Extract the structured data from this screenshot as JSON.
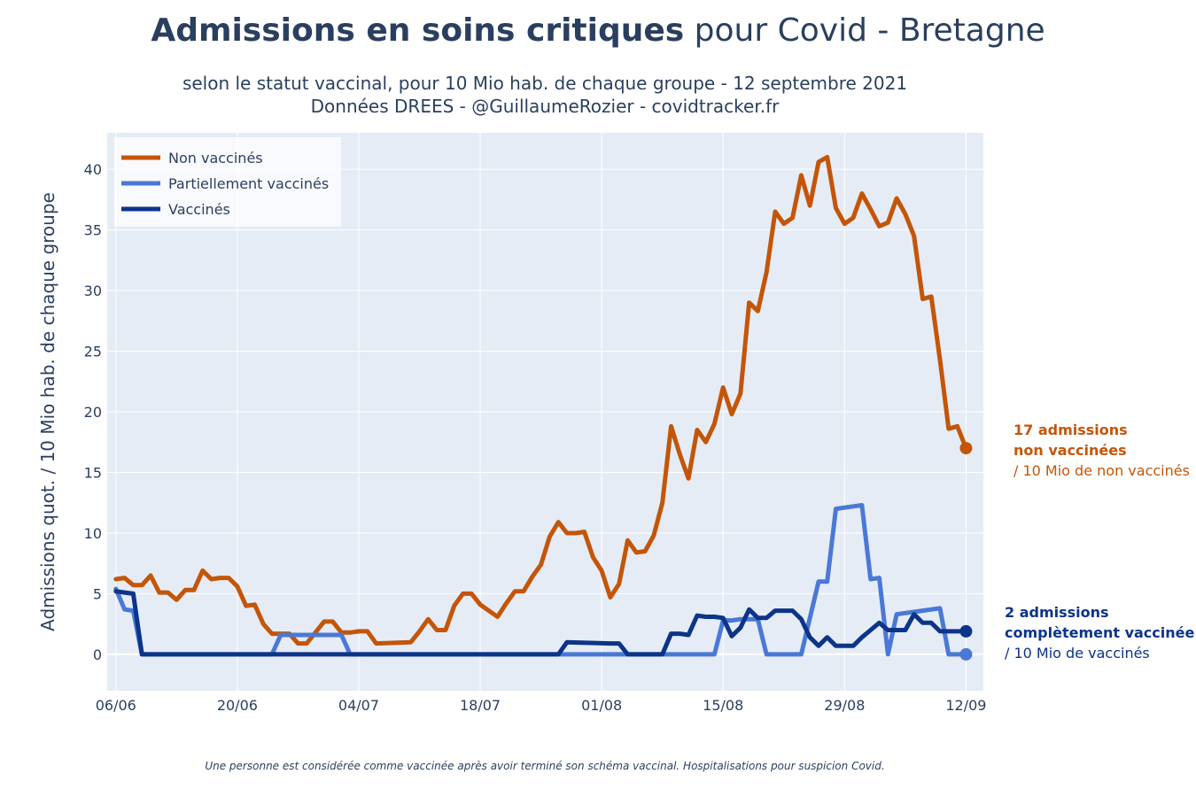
{
  "title": {
    "bold": "Admissions en soins critiques",
    "rest": " pour Covid - Bretagne"
  },
  "subtitle_line1": "selon le statut vaccinal, pour 10 Mio hab. de chaque groupe - 12 septembre 2021",
  "subtitle_line2": "Données DREES - @GuillaumeRozier - covidtracker.fr",
  "footnote": "Une personne est considérée comme vaccinée après avoir terminé son schéma vaccinal. Hospitalisations pour suspicion Covid.",
  "annotations": {
    "non_vaccines": {
      "line1": "17 admissions",
      "line2": "non vaccinées",
      "line3": "/ 10 Mio de non vaccinés"
    },
    "vaccines": {
      "line1": "2 admissions",
      "line2": "complètement vaccinée",
      "line3": "/ 10 Mio de vaccinés"
    }
  },
  "colors": {
    "non_vaccines": "#c45508",
    "partiellement": "#4a78d6",
    "vaccines": "#0c3489",
    "plot_bg": "#e5ecf6",
    "grid": "#ffffff"
  },
  "chart_data": {
    "type": "line",
    "title": "Admissions en soins critiques pour Covid - Bretagne",
    "xlabel": "",
    "ylabel": "Admissions quot. / 10 Mio hab. de chaque groupe",
    "x_start": "2021-06-06",
    "x_end": "2021-09-12",
    "xlim": [
      "2021-06-05",
      "2021-09-14"
    ],
    "ylim": [
      -3,
      43
    ],
    "x_ticks": [
      "06/06",
      "20/06",
      "04/07",
      "18/07",
      "01/08",
      "15/08",
      "29/08",
      "12/09"
    ],
    "y_ticks": [
      0,
      5,
      10,
      15,
      20,
      25,
      30,
      35,
      40
    ],
    "grid": true,
    "legend_position": "top-left",
    "series": [
      {
        "name": "Non vaccinés",
        "x": [
          "2021-06-06",
          "2021-06-07",
          "2021-06-08",
          "2021-06-09",
          "2021-06-10",
          "2021-06-11",
          "2021-06-12",
          "2021-06-13",
          "2021-06-14",
          "2021-06-15",
          "2021-06-16",
          "2021-06-17",
          "2021-06-18",
          "2021-06-19",
          "2021-06-20",
          "2021-06-21",
          "2021-06-22",
          "2021-06-23",
          "2021-06-24",
          "2021-06-25",
          "2021-06-26",
          "2021-06-27",
          "2021-06-28",
          "2021-06-29",
          "2021-06-30",
          "2021-07-01",
          "2021-07-02",
          "2021-07-03",
          "2021-07-04",
          "2021-07-05",
          "2021-07-06",
          "2021-07-10",
          "2021-07-11",
          "2021-07-12",
          "2021-07-13",
          "2021-07-14",
          "2021-07-15",
          "2021-07-16",
          "2021-07-17",
          "2021-07-18",
          "2021-07-20",
          "2021-07-21",
          "2021-07-22",
          "2021-07-23",
          "2021-07-24",
          "2021-07-25",
          "2021-07-26",
          "2021-07-27",
          "2021-07-28",
          "2021-07-29",
          "2021-07-30",
          "2021-07-31",
          "2021-08-01",
          "2021-08-02",
          "2021-08-03",
          "2021-08-04",
          "2021-08-05",
          "2021-08-06",
          "2021-08-07",
          "2021-08-08",
          "2021-08-09",
          "2021-08-10",
          "2021-08-11",
          "2021-08-12",
          "2021-08-13",
          "2021-08-14",
          "2021-08-15",
          "2021-08-16",
          "2021-08-17",
          "2021-08-18",
          "2021-08-19",
          "2021-08-20",
          "2021-08-21",
          "2021-08-22",
          "2021-08-23",
          "2021-08-24",
          "2021-08-25",
          "2021-08-26",
          "2021-08-27",
          "2021-08-28",
          "2021-08-29",
          "2021-08-30",
          "2021-08-31",
          "2021-09-01",
          "2021-09-02",
          "2021-09-03",
          "2021-09-04",
          "2021-09-05",
          "2021-09-06",
          "2021-09-07",
          "2021-09-08",
          "2021-09-09",
          "2021-09-10",
          "2021-09-11",
          "2021-09-12"
        ],
        "y": [
          6.2,
          6.3,
          5.7,
          5.7,
          6.5,
          5.1,
          5.1,
          4.5,
          5.3,
          5.3,
          6.9,
          6.2,
          6.3,
          6.3,
          5.6,
          4.0,
          4.1,
          2.5,
          1.7,
          1.7,
          1.7,
          0.9,
          0.9,
          1.8,
          2.7,
          2.7,
          1.8,
          1.8,
          1.9,
          1.9,
          0.9,
          1.0,
          1.9,
          2.9,
          2.0,
          2.0,
          4.0,
          5.0,
          5.0,
          4.1,
          3.1,
          4.2,
          5.2,
          5.2,
          6.4,
          7.4,
          9.7,
          10.9,
          10.0,
          10.0,
          10.1,
          8.0,
          6.9,
          4.7,
          5.8,
          9.4,
          8.4,
          8.5,
          9.8,
          12.5,
          18.8,
          16.5,
          14.5,
          18.5,
          17.5,
          19.0,
          22.0,
          19.8,
          21.5,
          29.0,
          28.3,
          31.5,
          36.5,
          35.5,
          36.0,
          39.5,
          37.0,
          40.6,
          41.0,
          36.8,
          35.5,
          36.0,
          38.0,
          36.7,
          35.3,
          35.6,
          37.6,
          36.3,
          34.5,
          29.3,
          29.5,
          24.3,
          18.6,
          18.8,
          17.0
        ]
      },
      {
        "name": "Partiellement vaccinés",
        "x": [
          "2021-06-06",
          "2021-06-07",
          "2021-06-08",
          "2021-06-09",
          "2021-06-10",
          "2021-06-24",
          "2021-06-25",
          "2021-07-02",
          "2021-07-03",
          "2021-08-09",
          "2021-08-11",
          "2021-08-12",
          "2021-08-13",
          "2021-08-14",
          "2021-08-15",
          "2021-08-16",
          "2021-08-17",
          "2021-08-18",
          "2021-08-19",
          "2021-08-20",
          "2021-08-21",
          "2021-08-22",
          "2021-08-23",
          "2021-08-24",
          "2021-08-25",
          "2021-08-26",
          "2021-08-27",
          "2021-08-28",
          "2021-08-29",
          "2021-08-30",
          "2021-08-31",
          "2021-09-01",
          "2021-09-02",
          "2021-09-03",
          "2021-09-04",
          "2021-09-09",
          "2021-09-10",
          "2021-09-11",
          "2021-09-12"
        ],
        "y": [
          5.4,
          3.7,
          3.6,
          0,
          0,
          0,
          1.6,
          1.6,
          0,
          0,
          0,
          0,
          0,
          0,
          2.8,
          2.8,
          2.9,
          2.9,
          2.9,
          0,
          0,
          0,
          0,
          0,
          3.0,
          6.0,
          6.0,
          12.0,
          12.1,
          12.2,
          12.3,
          6.2,
          6.3,
          0,
          3.3,
          3.8,
          0,
          0,
          0
        ]
      },
      {
        "name": "Vaccinés",
        "x": [
          "2021-06-06",
          "2021-06-07",
          "2021-06-08",
          "2021-06-09",
          "2021-07-27",
          "2021-07-28",
          "2021-08-02",
          "2021-08-03",
          "2021-08-04",
          "2021-08-05",
          "2021-08-06",
          "2021-08-07",
          "2021-08-08",
          "2021-08-09",
          "2021-08-10",
          "2021-08-11",
          "2021-08-12",
          "2021-08-13",
          "2021-08-14",
          "2021-08-15",
          "2021-08-16",
          "2021-08-17",
          "2021-08-18",
          "2021-08-19",
          "2021-08-20",
          "2021-08-21",
          "2021-08-22",
          "2021-08-23",
          "2021-08-24",
          "2021-08-25",
          "2021-08-26",
          "2021-08-27",
          "2021-08-28",
          "2021-08-29",
          "2021-08-30",
          "2021-08-31",
          "2021-09-01",
          "2021-09-02",
          "2021-09-03",
          "2021-09-04",
          "2021-09-05",
          "2021-09-06",
          "2021-09-07",
          "2021-09-08",
          "2021-09-09",
          "2021-09-10",
          "2021-09-11",
          "2021-09-12"
        ],
        "y": [
          5.2,
          5.1,
          5.0,
          0,
          0,
          1.0,
          0.9,
          0.9,
          0,
          0,
          0,
          0,
          0,
          1.7,
          1.7,
          1.6,
          3.2,
          3.1,
          3.1,
          3.0,
          1.5,
          2.2,
          3.7,
          3.0,
          3.0,
          3.6,
          3.6,
          3.6,
          2.9,
          1.4,
          0.7,
          1.4,
          0.7,
          0.7,
          0.7,
          1.4,
          2.0,
          2.6,
          2.0,
          2.0,
          2.0,
          3.3,
          2.6,
          2.6,
          1.9,
          1.9,
          1.9,
          1.9
        ]
      }
    ]
  }
}
